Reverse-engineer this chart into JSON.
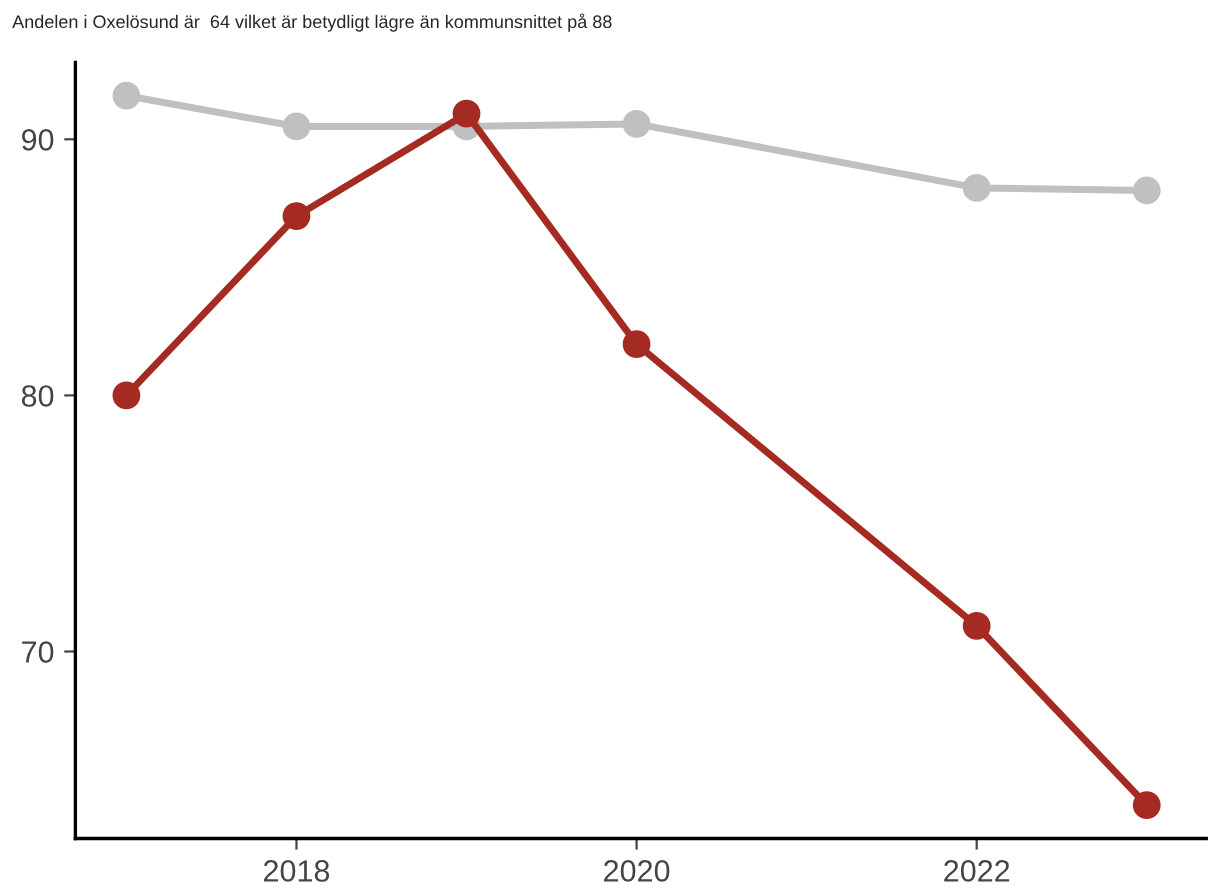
{
  "chart_data": {
    "type": "line",
    "title": "Andelen i Oxelösund är  64 vilket är betydligt lägre än kommunsnittet på 88",
    "x": [
      2017,
      2018,
      2019,
      2020,
      2022,
      2023
    ],
    "series": [
      {
        "color": "#c0c0c0",
        "values": [
          91.7,
          90.5,
          90.5,
          90.6,
          88.1,
          88.0
        ]
      },
      {
        "color": "#a52a22",
        "values": [
          80,
          87,
          91,
          82,
          71,
          64
        ]
      }
    ],
    "xlim": [
      2016.7,
      2023.35
    ],
    "xticks": [
      2018,
      2020,
      2022
    ],
    "ylim": [
      62.7,
      93
    ],
    "yticks": [
      70,
      80,
      90
    ],
    "marker": "circle",
    "line_style": "solid",
    "grid": false
  }
}
